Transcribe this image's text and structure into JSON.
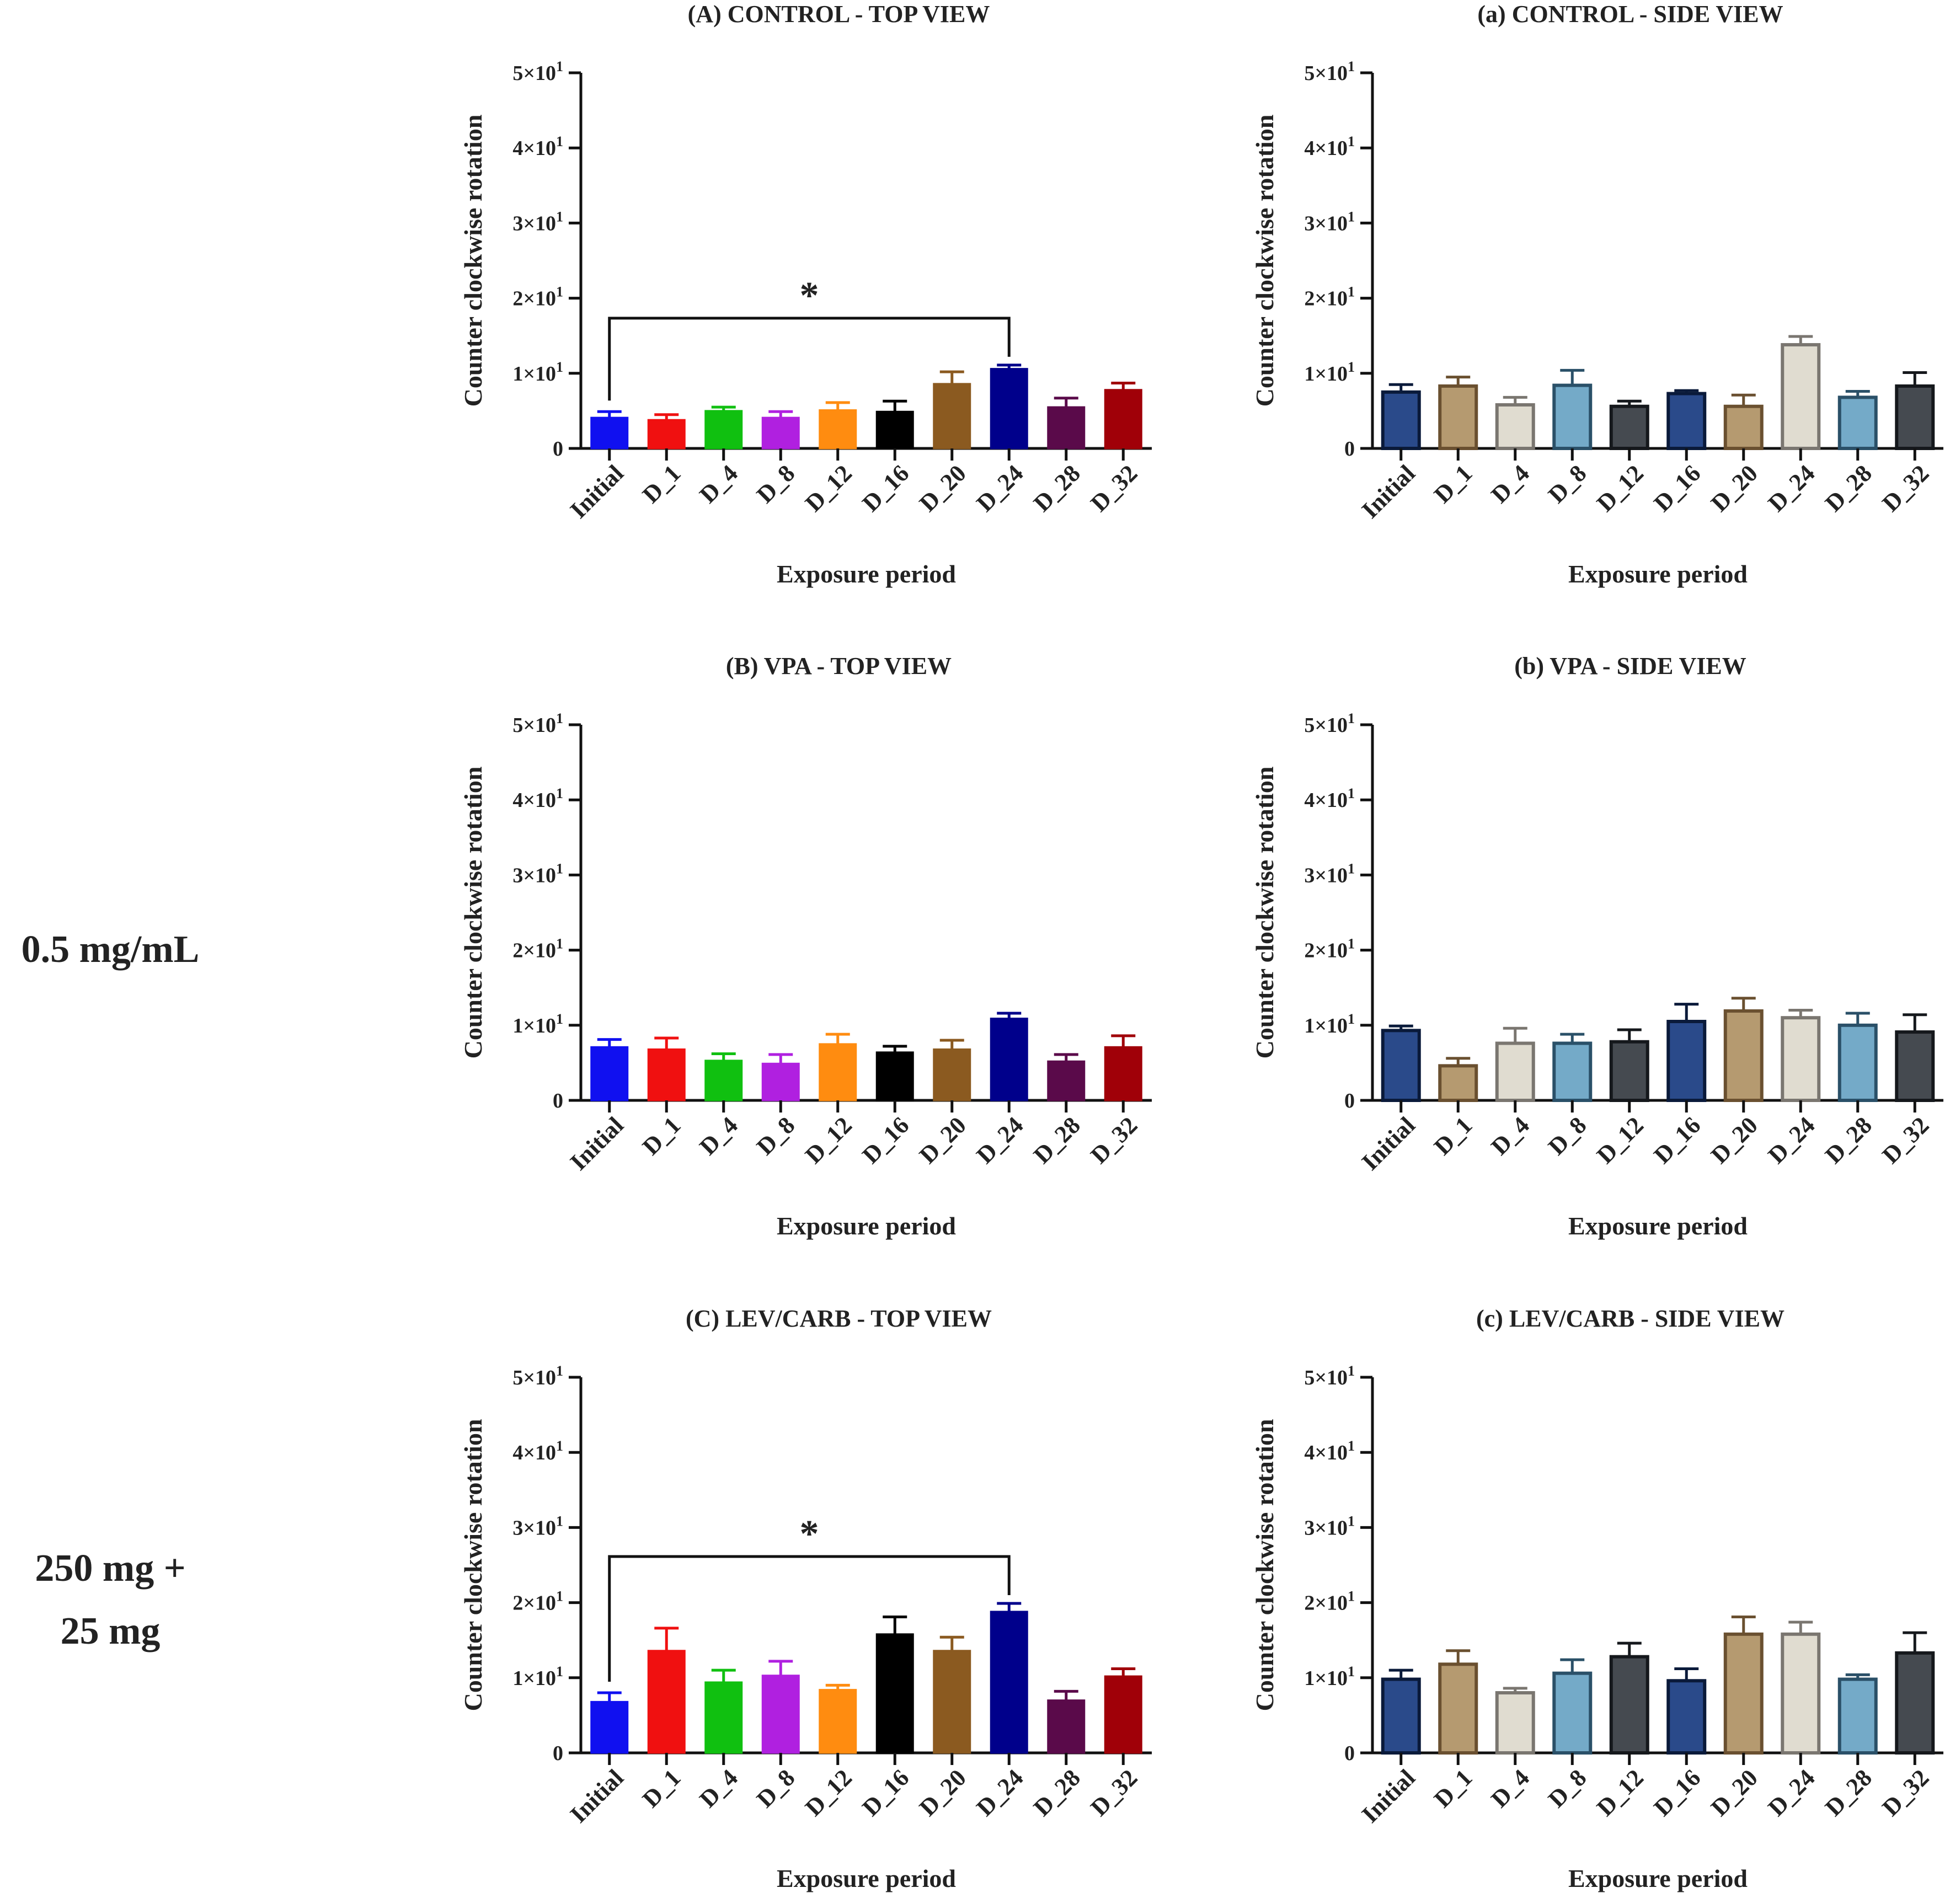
{
  "dose_labels": [
    "0.5 mg/mL",
    "250 mg +",
    "25 mg"
  ],
  "colors": {
    "top_view": [
      "#1010f0",
      "#f01010",
      "#10c010",
      "#b020e0",
      "#ff8c10",
      "#000000",
      "#8b5a20",
      "#00008b",
      "#5a0a4a",
      "#a00008"
    ],
    "side_view_fill": [
      "#2a4a8a",
      "#b59a70",
      "#e0dcd0",
      "#74aac8",
      "#454a50",
      "#2a4a8a",
      "#b59a70",
      "#e0dcd0",
      "#74aac8",
      "#454a50"
    ],
    "side_view_edge": [
      "#0a1a3a",
      "#6a5030",
      "#7a7670",
      "#2a5068",
      "#15181c",
      "#0a1a3a",
      "#6a5030",
      "#7a7670",
      "#2a5068",
      "#15181c"
    ]
  },
  "chart_data": [
    {
      "id": "A",
      "type": "bar",
      "title": "(A) CONTROL - TOP VIEW",
      "xlabel": "Exposure period",
      "ylabel": "Counter clockwise rotation",
      "ylim": [
        0,
        50
      ],
      "yticks": [
        {
          "value": 0,
          "base": "0",
          "exp": ""
        },
        {
          "value": 10,
          "base": "1×10",
          "exp": "1"
        },
        {
          "value": 20,
          "base": "2×10",
          "exp": "1"
        },
        {
          "value": 30,
          "base": "3×10",
          "exp": "1"
        },
        {
          "value": 40,
          "base": "4×10",
          "exp": "1"
        },
        {
          "value": 50,
          "base": "5×10",
          "exp": "1"
        }
      ],
      "categories": [
        "Initial",
        "D_1",
        "D_4",
        "D_8",
        "D_12",
        "D_16",
        "D_20",
        "D_24",
        "D_28",
        "D_32"
      ],
      "values": [
        4.1,
        3.8,
        5.0,
        4.1,
        5.1,
        4.9,
        8.6,
        10.6,
        5.5,
        7.8
      ],
      "errors": [
        0.8,
        0.7,
        0.5,
        0.8,
        1.0,
        1.4,
        1.6,
        0.5,
        1.2,
        0.9
      ],
      "significance": [
        {
          "from": "Initial",
          "to": "D_24",
          "label": "*"
        }
      ]
    },
    {
      "id": "a",
      "type": "bar",
      "title": "(a) CONTROL - SIDE VIEW",
      "xlabel": "Exposure period",
      "ylabel": "Counter clockwise rotation",
      "ylim": [
        0,
        50
      ],
      "yticks": [
        {
          "value": 0,
          "base": "0",
          "exp": ""
        },
        {
          "value": 10,
          "base": "1×10",
          "exp": "1"
        },
        {
          "value": 20,
          "base": "2×10",
          "exp": "1"
        },
        {
          "value": 30,
          "base": "3×10",
          "exp": "1"
        },
        {
          "value": 40,
          "base": "4×10",
          "exp": "1"
        },
        {
          "value": 50,
          "base": "5×10",
          "exp": "1"
        }
      ],
      "categories": [
        "Initial",
        "D_1",
        "D_4",
        "D_8",
        "D_12",
        "D_16",
        "D_20",
        "D_24",
        "D_28",
        "D_32"
      ],
      "values": [
        7.5,
        8.3,
        5.8,
        8.4,
        5.6,
        7.3,
        5.6,
        13.8,
        6.8,
        8.3
      ],
      "errors": [
        1.0,
        1.2,
        1.0,
        2.0,
        0.7,
        0.4,
        1.5,
        1.1,
        0.8,
        1.8
      ],
      "significance": []
    },
    {
      "id": "B",
      "type": "bar",
      "title": "(B) VPA - TOP VIEW",
      "xlabel": "Exposure period",
      "ylabel": "Counter clockwise rotation",
      "ylim": [
        0,
        50
      ],
      "yticks": [
        {
          "value": 0,
          "base": "0",
          "exp": ""
        },
        {
          "value": 10,
          "base": "1×10",
          "exp": "1"
        },
        {
          "value": 20,
          "base": "2×10",
          "exp": "1"
        },
        {
          "value": 30,
          "base": "3×10",
          "exp": "1"
        },
        {
          "value": 40,
          "base": "4×10",
          "exp": "1"
        },
        {
          "value": 50,
          "base": "5×10",
          "exp": "1"
        }
      ],
      "categories": [
        "Initial",
        "D_1",
        "D_4",
        "D_8",
        "D_12",
        "D_16",
        "D_20",
        "D_24",
        "D_28",
        "D_32"
      ],
      "values": [
        7.1,
        6.8,
        5.3,
        4.9,
        7.5,
        6.4,
        6.8,
        10.9,
        5.2,
        7.1
      ],
      "errors": [
        1.0,
        1.5,
        0.9,
        1.2,
        1.3,
        0.8,
        1.2,
        0.7,
        0.9,
        1.5
      ],
      "significance": []
    },
    {
      "id": "b",
      "type": "bar",
      "title": "(b) VPA - SIDE VIEW",
      "xlabel": "Exposure period",
      "ylabel": "Counter clockwise rotation",
      "ylim": [
        0,
        50
      ],
      "yticks": [
        {
          "value": 0,
          "base": "0",
          "exp": ""
        },
        {
          "value": 10,
          "base": "1×10",
          "exp": "1"
        },
        {
          "value": 20,
          "base": "2×10",
          "exp": "1"
        },
        {
          "value": 30,
          "base": "3×10",
          "exp": "1"
        },
        {
          "value": 40,
          "base": "4×10",
          "exp": "1"
        },
        {
          "value": 50,
          "base": "5×10",
          "exp": "1"
        }
      ],
      "categories": [
        "Initial",
        "D_1",
        "D_4",
        "D_8",
        "D_12",
        "D_16",
        "D_20",
        "D_24",
        "D_28",
        "D_32"
      ],
      "values": [
        9.3,
        4.6,
        7.6,
        7.6,
        7.8,
        10.5,
        11.9,
        11.0,
        10.0,
        9.1
      ],
      "errors": [
        0.6,
        1.0,
        2.0,
        1.2,
        1.6,
        2.3,
        1.7,
        1.0,
        1.6,
        2.3
      ],
      "significance": []
    },
    {
      "id": "C",
      "type": "bar",
      "title": "(C) LEV/CARB - TOP VIEW",
      "xlabel": "Exposure period",
      "ylabel": "Counter clockwise rotation",
      "ylim": [
        0,
        50
      ],
      "yticks": [
        {
          "value": 0,
          "base": "0",
          "exp": ""
        },
        {
          "value": 10,
          "base": "1×10",
          "exp": "1"
        },
        {
          "value": 20,
          "base": "2×10",
          "exp": "1"
        },
        {
          "value": 30,
          "base": "3×10",
          "exp": "1"
        },
        {
          "value": 40,
          "base": "4×10",
          "exp": "1"
        },
        {
          "value": 50,
          "base": "5×10",
          "exp": "1"
        }
      ],
      "categories": [
        "Initial",
        "D_1",
        "D_4",
        "D_8",
        "D_12",
        "D_16",
        "D_20",
        "D_24",
        "D_28",
        "D_32"
      ],
      "values": [
        6.8,
        13.6,
        9.4,
        10.3,
        8.4,
        15.8,
        13.6,
        18.8,
        7.0,
        10.2
      ],
      "errors": [
        1.2,
        3.0,
        1.6,
        1.9,
        0.6,
        2.3,
        1.8,
        1.1,
        1.2,
        1.0
      ],
      "significance": [
        {
          "from": "Initial",
          "to": "D_24",
          "label": "*"
        }
      ]
    },
    {
      "id": "c",
      "type": "bar",
      "title": "(c) LEV/CARB - SIDE VIEW",
      "xlabel": "Exposure period",
      "ylabel": "Counter clockwise rotation",
      "ylim": [
        0,
        50
      ],
      "yticks": [
        {
          "value": 0,
          "base": "0",
          "exp": ""
        },
        {
          "value": 10,
          "base": "1×10",
          "exp": "1"
        },
        {
          "value": 20,
          "base": "2×10",
          "exp": "1"
        },
        {
          "value": 30,
          "base": "3×10",
          "exp": "1"
        },
        {
          "value": 40,
          "base": "4×10",
          "exp": "1"
        },
        {
          "value": 50,
          "base": "5×10",
          "exp": "1"
        }
      ],
      "categories": [
        "Initial",
        "D_1",
        "D_4",
        "D_8",
        "D_12",
        "D_16",
        "D_20",
        "D_24",
        "D_28",
        "D_32"
      ],
      "values": [
        9.8,
        11.8,
        8.0,
        10.6,
        12.8,
        9.6,
        15.8,
        15.8,
        9.8,
        13.3
      ],
      "errors": [
        1.2,
        1.8,
        0.6,
        1.8,
        1.8,
        1.6,
        2.3,
        1.6,
        0.6,
        2.7
      ],
      "significance": []
    }
  ]
}
